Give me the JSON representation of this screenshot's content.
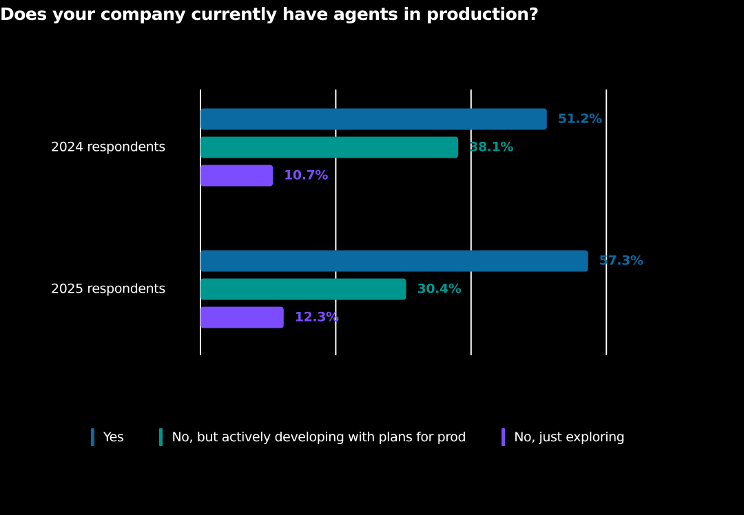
{
  "chart_data": {
    "type": "bar",
    "orientation": "horizontal",
    "title": "Does your company currently have agents in production?",
    "categories": [
      "2024 respondents",
      "2025 respondents"
    ],
    "series": [
      {
        "name": "Yes",
        "values": [
          51.2,
          57.3
        ],
        "labels": [
          "51.2%",
          "57.3%"
        ],
        "color": "#0a6aa1"
      },
      {
        "name": "No, but actively developing with plans for prod",
        "values": [
          38.1,
          30.4
        ],
        "labels": [
          "38.1%",
          "30.4%"
        ],
        "color": "#009690"
      },
      {
        "name": "No, just exploring",
        "values": [
          10.7,
          12.3
        ],
        "labels": [
          "10.7%",
          "12.3%"
        ],
        "color": "#7c4dff"
      }
    ],
    "xlim": [
      0,
      60
    ],
    "grid": true,
    "legend_position": "bottom"
  }
}
